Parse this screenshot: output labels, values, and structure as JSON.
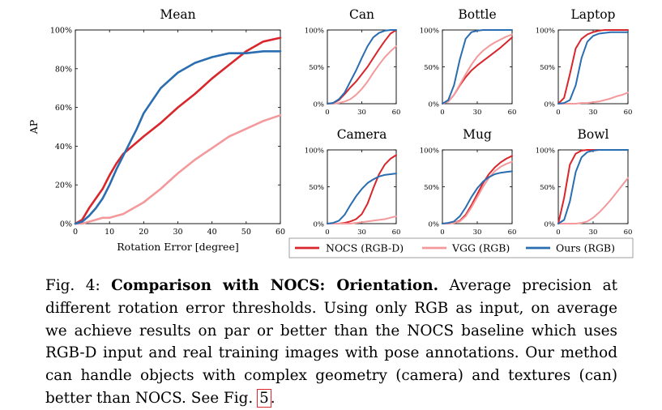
{
  "chart_data": [
    {
      "type": "line",
      "title": "Mean",
      "xlabel": "Rotation Error [degree]",
      "ylabel": "AP",
      "xlim": [
        0,
        60
      ],
      "ylim": [
        0,
        100
      ],
      "x_ticks": [
        "0",
        "10",
        "20",
        "30",
        "40",
        "50",
        "60"
      ],
      "y_ticks": [
        "0%",
        "20%",
        "40%",
        "60%",
        "80%",
        "100%"
      ],
      "series": [
        {
          "name": "NOCS (RGB-D)",
          "x": [
            0,
            2,
            4,
            6,
            8,
            10,
            12,
            14,
            16,
            18,
            20,
            25,
            30,
            35,
            40,
            45,
            50,
            55,
            60
          ],
          "y": [
            0,
            2,
            8,
            13,
            18,
            25,
            31,
            36,
            39,
            42,
            45,
            52,
            60,
            67,
            75,
            82,
            89,
            94,
            96
          ]
        },
        {
          "name": "VGG (RGB)",
          "x": [
            0,
            2,
            4,
            6,
            8,
            10,
            12,
            14,
            16,
            18,
            20,
            25,
            30,
            35,
            40,
            45,
            50,
            55,
            60
          ],
          "y": [
            0,
            0,
            1,
            2,
            3,
            3,
            4,
            5,
            7,
            9,
            11,
            18,
            26,
            33,
            39,
            45,
            49,
            53,
            56
          ]
        },
        {
          "name": "Ours (RGB)",
          "x": [
            0,
            2,
            4,
            6,
            8,
            10,
            12,
            14,
            16,
            18,
            20,
            25,
            30,
            35,
            40,
            45,
            50,
            55,
            60
          ],
          "y": [
            0,
            1,
            4,
            8,
            13,
            20,
            28,
            35,
            42,
            49,
            57,
            70,
            78,
            83,
            86,
            88,
            88,
            89,
            89
          ]
        }
      ]
    },
    {
      "type": "line",
      "title": "Can",
      "xlim": [
        0,
        60
      ],
      "ylim": [
        0,
        100
      ],
      "x_ticks": [
        "0",
        "30",
        "60"
      ],
      "y_ticks": [
        "0%",
        "50%",
        "100%"
      ],
      "series": [
        {
          "name": "NOCS (RGB-D)",
          "x": [
            0,
            5,
            10,
            15,
            20,
            25,
            30,
            35,
            40,
            45,
            50,
            55,
            60
          ],
          "y": [
            0,
            1,
            5,
            13,
            22,
            30,
            40,
            50,
            62,
            74,
            85,
            95,
            100
          ]
        },
        {
          "name": "VGG (RGB)",
          "x": [
            0,
            5,
            10,
            15,
            20,
            25,
            30,
            35,
            40,
            45,
            50,
            55,
            60
          ],
          "y": [
            0,
            0,
            1,
            3,
            6,
            12,
            20,
            30,
            42,
            53,
            63,
            71,
            78
          ]
        },
        {
          "name": "Ours (RGB)",
          "x": [
            0,
            5,
            10,
            15,
            20,
            25,
            30,
            35,
            40,
            45,
            50,
            55,
            60
          ],
          "y": [
            0,
            1,
            6,
            15,
            30,
            45,
            62,
            78,
            90,
            96,
            99,
            100,
            100
          ]
        }
      ]
    },
    {
      "type": "line",
      "title": "Bottle",
      "xlim": [
        0,
        60
      ],
      "ylim": [
        0,
        100
      ],
      "x_ticks": [
        "0",
        "30",
        "60"
      ],
      "y_ticks": [
        "0%",
        "50%",
        "100%"
      ],
      "series": [
        {
          "name": "NOCS (RGB-D)",
          "x": [
            0,
            5,
            10,
            15,
            20,
            25,
            30,
            35,
            40,
            45,
            50,
            55,
            60
          ],
          "y": [
            0,
            3,
            12,
            25,
            36,
            45,
            52,
            58,
            64,
            70,
            76,
            83,
            90
          ]
        },
        {
          "name": "VGG (RGB)",
          "x": [
            0,
            5,
            10,
            15,
            20,
            25,
            30,
            35,
            40,
            45,
            50,
            55,
            60
          ],
          "y": [
            0,
            3,
            12,
            26,
            40,
            53,
            64,
            72,
            78,
            83,
            87,
            91,
            94
          ]
        },
        {
          "name": "Ours (RGB)",
          "x": [
            0,
            5,
            10,
            15,
            20,
            25,
            30,
            35,
            40,
            45,
            50,
            55,
            60
          ],
          "y": [
            0,
            5,
            25,
            60,
            88,
            97,
            99,
            100,
            100,
            100,
            100,
            100,
            100
          ]
        }
      ]
    },
    {
      "type": "line",
      "title": "Laptop",
      "xlim": [
        0,
        60
      ],
      "ylim": [
        0,
        100
      ],
      "x_ticks": [
        "0",
        "30",
        "60"
      ],
      "y_ticks": [
        "0%",
        "50%",
        "100%"
      ],
      "series": [
        {
          "name": "NOCS (RGB-D)",
          "x": [
            0,
            5,
            10,
            15,
            20,
            25,
            30,
            35,
            40,
            45,
            50,
            55,
            60
          ],
          "y": [
            0,
            8,
            40,
            75,
            88,
            94,
            97,
            99,
            100,
            100,
            100,
            100,
            100
          ]
        },
        {
          "name": "VGG (RGB)",
          "x": [
            0,
            5,
            10,
            15,
            20,
            25,
            30,
            35,
            40,
            45,
            50,
            55,
            60
          ],
          "y": [
            0,
            0,
            0,
            0,
            1,
            1,
            2,
            3,
            5,
            7,
            10,
            12,
            15
          ]
        },
        {
          "name": "Ours (RGB)",
          "x": [
            0,
            5,
            10,
            15,
            20,
            25,
            30,
            35,
            40,
            45,
            50,
            55,
            60
          ],
          "y": [
            0,
            1,
            5,
            25,
            62,
            84,
            92,
            95,
            96,
            97,
            97,
            97,
            97
          ]
        }
      ]
    },
    {
      "type": "line",
      "title": "Camera",
      "xlim": [
        0,
        60
      ],
      "ylim": [
        0,
        100
      ],
      "x_ticks": [
        "0",
        "30",
        "60"
      ],
      "y_ticks": [
        "0%",
        "50%",
        "100%"
      ],
      "series": [
        {
          "name": "NOCS (RGB-D)",
          "x": [
            0,
            5,
            10,
            15,
            20,
            25,
            30,
            35,
            40,
            45,
            50,
            55,
            60
          ],
          "y": [
            0,
            0,
            0,
            1,
            3,
            6,
            13,
            27,
            48,
            67,
            80,
            88,
            93
          ]
        },
        {
          "name": "VGG (RGB)",
          "x": [
            0,
            5,
            10,
            15,
            20,
            25,
            30,
            35,
            40,
            45,
            50,
            55,
            60
          ],
          "y": [
            0,
            0,
            0,
            0,
            0,
            1,
            2,
            3,
            4,
            5,
            6,
            8,
            10
          ]
        },
        {
          "name": "Ours (RGB)",
          "x": [
            0,
            5,
            10,
            15,
            20,
            25,
            30,
            35,
            40,
            45,
            50,
            55,
            60
          ],
          "y": [
            0,
            1,
            4,
            12,
            25,
            37,
            47,
            55,
            60,
            64,
            66,
            67,
            68
          ]
        }
      ]
    },
    {
      "type": "line",
      "title": "Mug",
      "xlim": [
        0,
        60
      ],
      "ylim": [
        0,
        100
      ],
      "x_ticks": [
        "0",
        "30",
        "60"
      ],
      "y_ticks": [
        "0%",
        "50%",
        "100%"
      ],
      "series": [
        {
          "name": "NOCS (RGB-D)",
          "x": [
            0,
            5,
            10,
            15,
            20,
            25,
            30,
            35,
            40,
            45,
            50,
            55,
            60
          ],
          "y": [
            0,
            0,
            1,
            4,
            12,
            25,
            40,
            55,
            67,
            76,
            83,
            88,
            92
          ]
        },
        {
          "name": "VGG (RGB)",
          "x": [
            0,
            5,
            10,
            15,
            20,
            25,
            30,
            35,
            40,
            45,
            50,
            55,
            60
          ],
          "y": [
            0,
            0,
            1,
            3,
            10,
            22,
            36,
            50,
            62,
            71,
            77,
            81,
            84
          ]
        },
        {
          "name": "Ours (RGB)",
          "x": [
            0,
            5,
            10,
            15,
            20,
            25,
            30,
            35,
            40,
            45,
            50,
            55,
            60
          ],
          "y": [
            0,
            1,
            3,
            10,
            22,
            36,
            48,
            57,
            63,
            67,
            69,
            70,
            71
          ]
        }
      ]
    },
    {
      "type": "line",
      "title": "Bowl",
      "xlim": [
        0,
        60
      ],
      "ylim": [
        0,
        100
      ],
      "x_ticks": [
        "0",
        "30",
        "60"
      ],
      "y_ticks": [
        "0%",
        "50%",
        "100%"
      ],
      "series": [
        {
          "name": "NOCS (RGB-D)",
          "x": [
            0,
            5,
            10,
            15,
            20,
            25,
            30,
            35,
            40,
            45,
            50,
            55,
            60
          ],
          "y": [
            0,
            35,
            80,
            95,
            99,
            100,
            100,
            100,
            100,
            100,
            100,
            100,
            100
          ]
        },
        {
          "name": "VGG (RGB)",
          "x": [
            0,
            5,
            10,
            15,
            20,
            25,
            30,
            35,
            40,
            45,
            50,
            55,
            60
          ],
          "y": [
            0,
            0,
            0,
            0,
            1,
            3,
            8,
            15,
            23,
            32,
            42,
            52,
            62
          ]
        },
        {
          "name": "Ours (RGB)",
          "x": [
            0,
            5,
            10,
            15,
            20,
            25,
            30,
            35,
            40,
            45,
            50,
            55,
            60
          ],
          "y": [
            0,
            5,
            30,
            70,
            90,
            97,
            99,
            100,
            100,
            100,
            100,
            100,
            100
          ]
        }
      ]
    }
  ],
  "legend": {
    "items": [
      {
        "label": "NOCS (RGB-D)",
        "color": "#d9262c"
      },
      {
        "label": "VGG (RGB)",
        "color": "#f4999b"
      },
      {
        "label": "Ours (RGB)",
        "color": "#2a6db0"
      }
    ]
  },
  "caption": {
    "prefix": "Fig. 4:",
    "bold": "Comparison with NOCS: Orientation.",
    "body": "Average precision at different rotation error thresholds. Using only RGB as input, on average we achieve results on par or better than the NOCS baseline which uses RGB-D input and real training images with pose annotations. Our method can handle objects with complex geometry (camera) and textures (can) better than NOCS. See Fig.",
    "ref": "5",
    "suffix": "."
  }
}
